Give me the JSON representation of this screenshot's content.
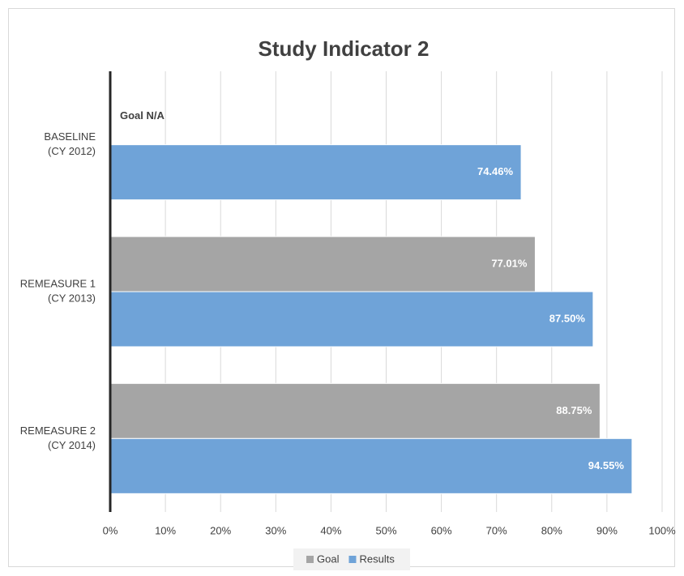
{
  "chart_data": {
    "type": "bar",
    "orientation": "horizontal",
    "title": "Study Indicator 2",
    "annotation": "Goal N/A",
    "categories": [
      [
        "BASELINE",
        "(CY 2012)"
      ],
      [
        "REMEASURE  1",
        "(CY 2013)"
      ],
      [
        "REMEASURE  2",
        "(CY 2014)"
      ]
    ],
    "series": [
      {
        "name": "Goal",
        "color": "#a5a5a5",
        "values": [
          null,
          77.01,
          88.75
        ],
        "value_labels": [
          null,
          "77.01%",
          "88.75%"
        ]
      },
      {
        "name": "Results",
        "color": "#6fa3d8",
        "values": [
          74.46,
          87.5,
          94.55
        ],
        "value_labels": [
          "74.46%",
          "87.50%",
          "94.55%"
        ]
      }
    ],
    "xlim": [
      0,
      100
    ],
    "xticks": [
      {
        "value": 0,
        "label": "0%"
      },
      {
        "value": 10,
        "label": "10%"
      },
      {
        "value": 20,
        "label": "20%"
      },
      {
        "value": 30,
        "label": "30%"
      },
      {
        "value": 40,
        "label": "40%"
      },
      {
        "value": 50,
        "label": "50%"
      },
      {
        "value": 60,
        "label": "60%"
      },
      {
        "value": 70,
        "label": "70%"
      },
      {
        "value": 80,
        "label": "80%"
      },
      {
        "value": 90,
        "label": "90%"
      },
      {
        "value": 100,
        "label": "100%"
      }
    ],
    "grid": true,
    "legend": "bottom"
  }
}
